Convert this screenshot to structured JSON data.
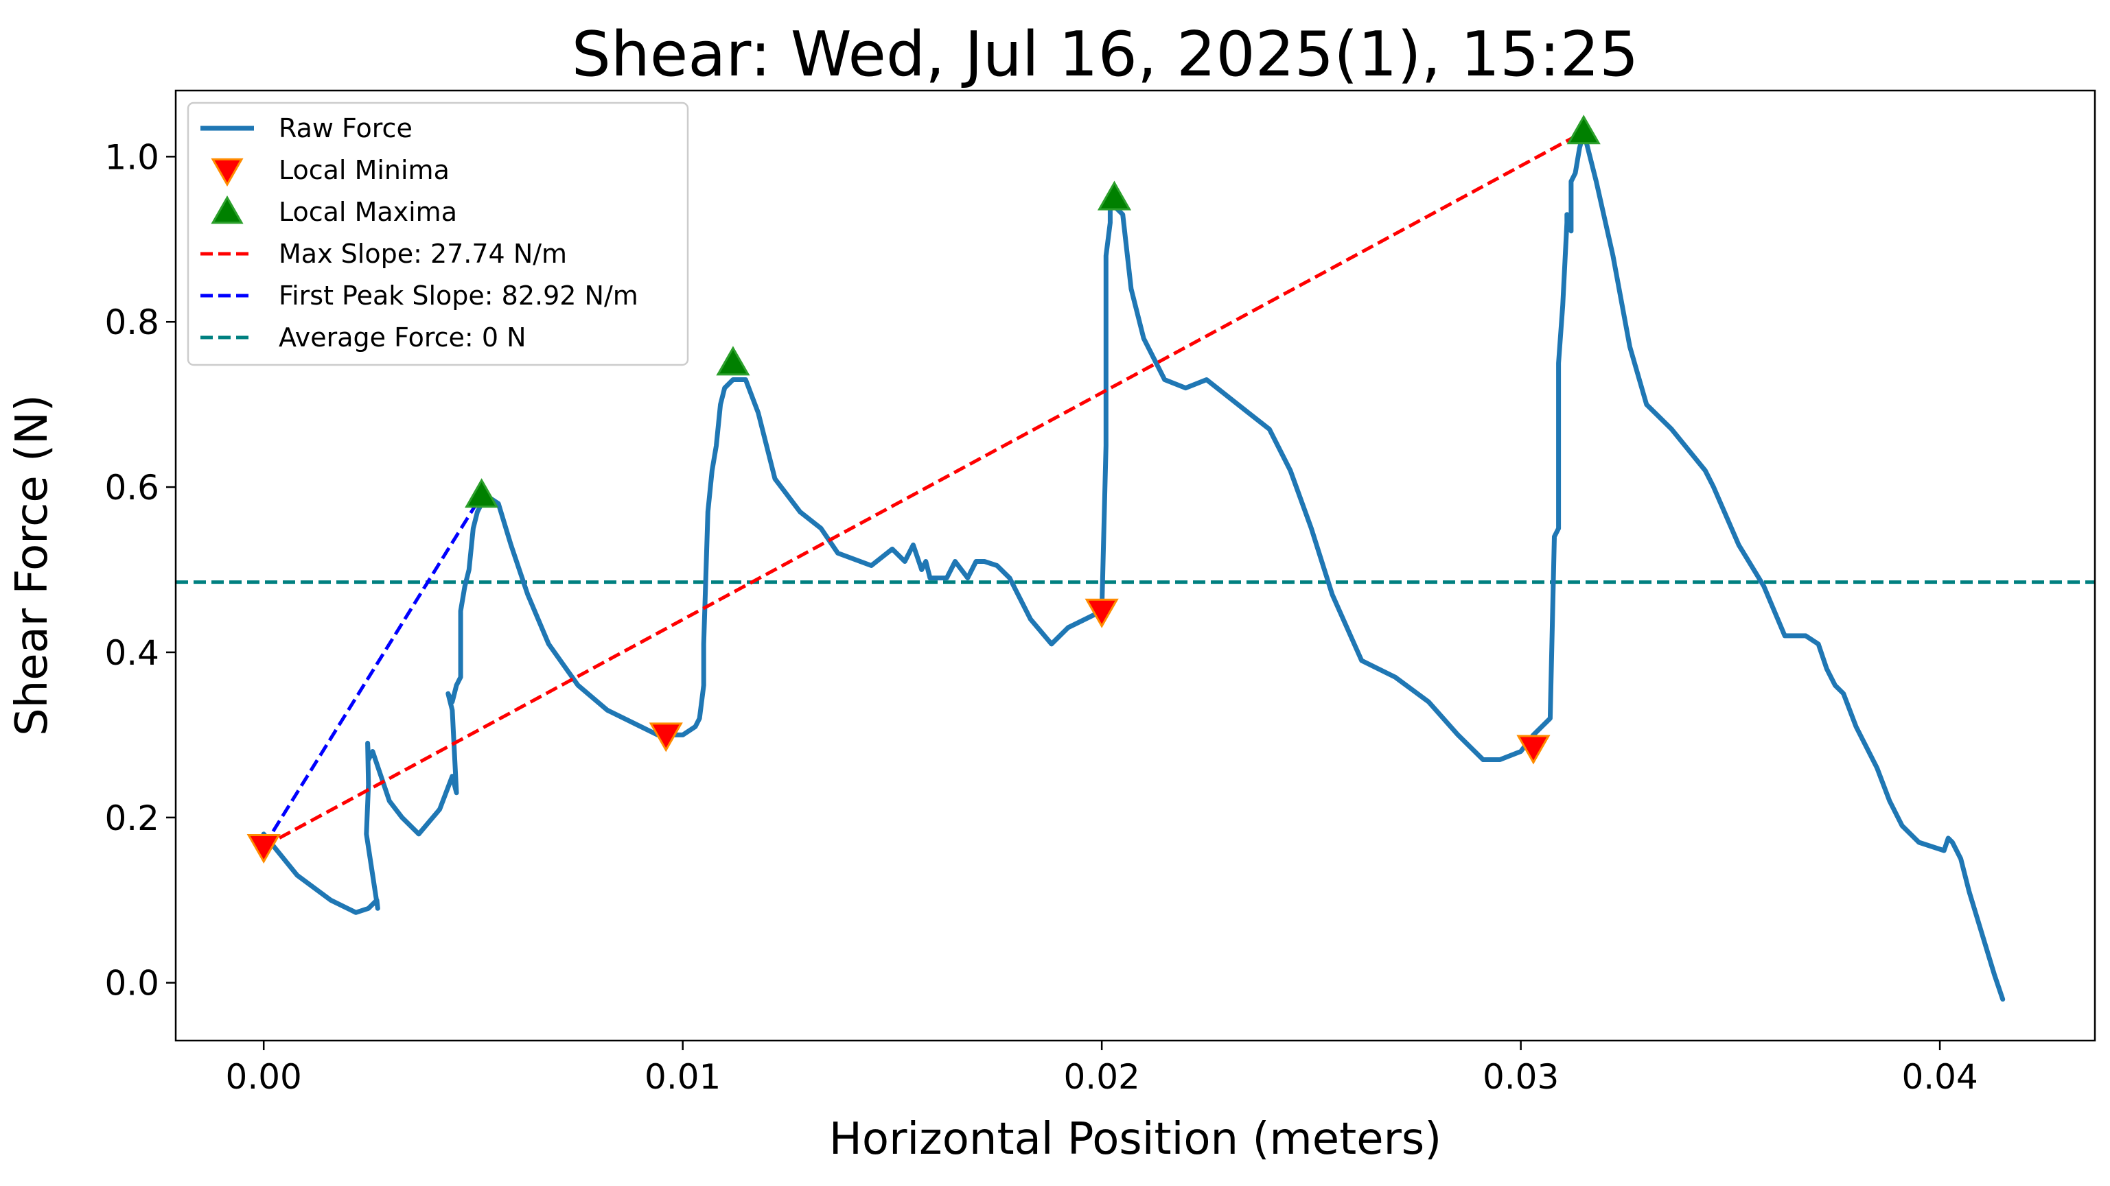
{
  "chart_data": {
    "type": "line",
    "title": "Shear: Wed, Jul 16, 2025(1), 15:25",
    "xlabel": "Horizontal Position (meters)",
    "ylabel": "Shear Force (N)",
    "xlim": [
      -0.0021,
      0.0437
    ],
    "ylim": [
      -0.07,
      1.08
    ],
    "xticks": [
      0.0,
      0.01,
      0.02,
      0.03,
      0.04
    ],
    "xtick_labels": [
      "0.00",
      "0.01",
      "0.02",
      "0.03",
      "0.04"
    ],
    "yticks": [
      0.0,
      0.2,
      0.4,
      0.6,
      0.8,
      1.0
    ],
    "ytick_labels": [
      "0.0",
      "0.2",
      "0.4",
      "0.6",
      "0.8",
      "1.0"
    ],
    "grid": false,
    "legend_position": "top-left",
    "legend": [
      {
        "label": "Raw Force",
        "kind": "line",
        "color": "#1f77b4"
      },
      {
        "label": "Local Minima",
        "kind": "marker-down",
        "color": "#ff0000",
        "edge": "#ff8c00"
      },
      {
        "label": "Local Maxima",
        "kind": "marker-up",
        "color": "#008000",
        "edge": "#2ca02c"
      },
      {
        "label": "Max Slope: 27.74 N/m",
        "kind": "dashed",
        "color": "#ff0000"
      },
      {
        "label": "First Peak Slope: 82.92 N/m",
        "kind": "dashed",
        "color": "#0000ff"
      },
      {
        "label": "Average Force: 0 N",
        "kind": "dashed",
        "color": "#008080"
      }
    ],
    "series": [
      {
        "name": "Raw Force",
        "color": "#1f77b4",
        "x": [
          0.0,
          0.0008,
          0.0016,
          0.0022,
          0.0025,
          0.0027,
          0.00272,
          0.00245,
          0.0025,
          0.00248,
          0.0025,
          0.0026,
          0.0028,
          0.003,
          0.0033,
          0.0037,
          0.0042,
          0.0045,
          0.0046,
          0.0045,
          0.0044,
          0.0045,
          0.0046,
          0.0047,
          0.0047,
          0.0048,
          0.0049,
          0.005,
          0.0051,
          0.0053,
          0.0056,
          0.0059,
          0.0063,
          0.0068,
          0.0075,
          0.0082,
          0.009,
          0.0094,
          0.0096,
          0.01,
          0.0103,
          0.0104,
          0.0105,
          0.0105,
          0.0106,
          0.0107,
          0.0108,
          0.0109,
          0.011,
          0.0112,
          0.0115,
          0.0118,
          0.0122,
          0.0128,
          0.0133,
          0.0137,
          0.0145,
          0.015,
          0.0153,
          0.0155,
          0.0157,
          0.0158,
          0.0159,
          0.0161,
          0.0163,
          0.0165,
          0.0168,
          0.017,
          0.0172,
          0.0175,
          0.0178,
          0.018,
          0.0183,
          0.0188,
          0.0192,
          0.0196,
          0.02,
          0.0201,
          0.0201,
          0.0201,
          0.0202,
          0.0202,
          0.0203,
          0.0205,
          0.0207,
          0.021,
          0.0215,
          0.022,
          0.0225,
          0.023,
          0.0235,
          0.024,
          0.0245,
          0.025,
          0.0255,
          0.0262,
          0.027,
          0.0278,
          0.0285,
          0.0291,
          0.0295,
          0.03,
          0.0303,
          0.0307,
          0.0308,
          0.0309,
          0.0309,
          0.0309,
          0.031,
          0.0311,
          0.0311,
          0.0312,
          0.0312,
          0.0313,
          0.0314,
          0.0315,
          0.0318,
          0.0322,
          0.0326,
          0.033,
          0.0336,
          0.0344,
          0.0346,
          0.0352,
          0.0358,
          0.0363,
          0.0368,
          0.0371,
          0.0373,
          0.0375,
          0.0377,
          0.038,
          0.0385,
          0.0388,
          0.0391,
          0.0395,
          0.0398,
          0.0401,
          0.0402,
          0.0403,
          0.0405,
          0.0407,
          0.041,
          0.0413,
          0.0415
        ],
        "y": [
          0.18,
          0.13,
          0.1,
          0.085,
          0.09,
          0.1,
          0.09,
          0.18,
          0.24,
          0.29,
          0.27,
          0.28,
          0.25,
          0.22,
          0.2,
          0.18,
          0.21,
          0.25,
          0.23,
          0.33,
          0.35,
          0.34,
          0.36,
          0.37,
          0.45,
          0.48,
          0.5,
          0.55,
          0.57,
          0.59,
          0.58,
          0.53,
          0.47,
          0.41,
          0.36,
          0.33,
          0.31,
          0.3,
          0.3,
          0.3,
          0.31,
          0.32,
          0.36,
          0.41,
          0.57,
          0.62,
          0.65,
          0.7,
          0.72,
          0.73,
          0.73,
          0.69,
          0.61,
          0.57,
          0.55,
          0.52,
          0.505,
          0.525,
          0.51,
          0.53,
          0.5,
          0.51,
          0.49,
          0.49,
          0.49,
          0.51,
          0.49,
          0.51,
          0.51,
          0.505,
          0.49,
          0.47,
          0.44,
          0.41,
          0.43,
          0.44,
          0.45,
          0.65,
          0.76,
          0.88,
          0.92,
          0.95,
          0.94,
          0.93,
          0.84,
          0.78,
          0.73,
          0.72,
          0.73,
          0.71,
          0.69,
          0.67,
          0.62,
          0.55,
          0.47,
          0.39,
          0.37,
          0.34,
          0.3,
          0.27,
          0.27,
          0.28,
          0.3,
          0.32,
          0.54,
          0.55,
          0.7,
          0.75,
          0.82,
          0.92,
          0.93,
          0.91,
          0.97,
          0.98,
          1.01,
          1.03,
          0.97,
          0.88,
          0.77,
          0.7,
          0.67,
          0.62,
          0.6,
          0.53,
          0.48,
          0.42,
          0.42,
          0.41,
          0.38,
          0.36,
          0.35,
          0.31,
          0.26,
          0.22,
          0.19,
          0.17,
          0.165,
          0.16,
          0.175,
          0.17,
          0.15,
          0.11,
          0.06,
          0.01,
          -0.02
        ]
      }
    ],
    "local_minima": [
      {
        "x": 0.0,
        "y": 0.165
      },
      {
        "x": 0.0096,
        "y": 0.3
      },
      {
        "x": 0.02,
        "y": 0.45
      },
      {
        "x": 0.0303,
        "y": 0.285
      }
    ],
    "local_maxima": [
      {
        "x": 0.0052,
        "y": 0.59
      },
      {
        "x": 0.0112,
        "y": 0.75
      },
      {
        "x": 0.0203,
        "y": 0.95
      },
      {
        "x": 0.0315,
        "y": 1.03
      }
    ],
    "max_slope_line": {
      "x": [
        0.0,
        0.0315
      ],
      "y": [
        0.165,
        1.03
      ]
    },
    "first_peak_slope_line": {
      "x": [
        0.0,
        0.0052
      ],
      "y": [
        0.165,
        0.59
      ]
    },
    "average_force_y": 0.485
  }
}
